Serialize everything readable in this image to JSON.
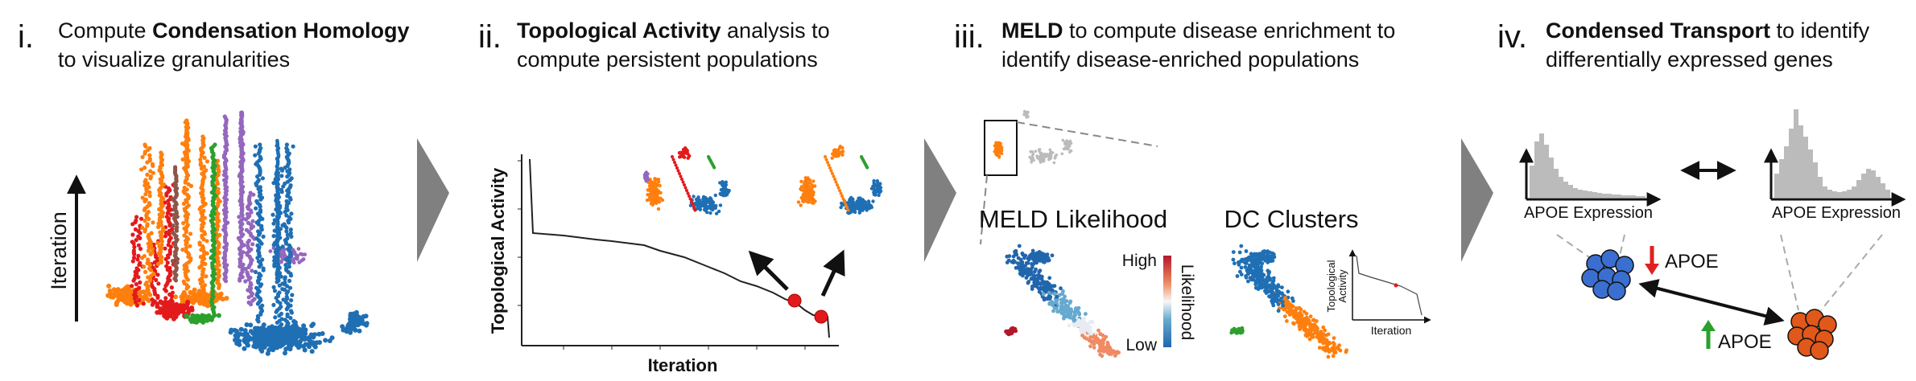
{
  "panels": [
    {
      "numeral": "i.",
      "line1_bold": "Condensation Homology",
      "line1_pre": "Compute ",
      "line1_post": "",
      "line2": "to visualize granularities",
      "axis_label": "Iteration"
    },
    {
      "numeral": "ii.",
      "line1_bold": "Topological Activity",
      "line1_pre": "",
      "line1_post": " analysis to",
      "line2": "compute persistent populations",
      "xlabel": "Iteration",
      "ylabel": "Topological Activity"
    },
    {
      "numeral": "iii.",
      "line1_bold": "MELD",
      "line1_pre": "",
      "line1_post": " to compute disease enrichment to",
      "line2": "identify disease-enriched populations",
      "meld_title": "MELD Likelihood",
      "dc_title": "DC Clusters",
      "colorbar_high": "High",
      "colorbar_low": "Low",
      "colorbar_label": "Likelihood",
      "inset_ylabel_1": "Topological",
      "inset_ylabel_2": "Activity",
      "inset_xlabel": "Iteration"
    },
    {
      "numeral": "iv.",
      "line1_bold": "Condensed Transport",
      "line1_pre": "",
      "line1_post": " to identify",
      "line2": "differentially expressed genes",
      "hist_left_label": "APOE Expression",
      "hist_right_label": "APOE Expression",
      "down_gene": "APOE",
      "up_gene": "APOE"
    }
  ],
  "colors": {
    "red": "#e31a1c",
    "orange": "#ff7f0e",
    "green": "#2ca02c",
    "purple": "#9467bd",
    "blue": "#1f6fb4",
    "brown": "#8c564b",
    "gray": "#bbbbbb",
    "arrow_gray": "#808080",
    "cell_blue": "#3a6fcf",
    "cell_orange": "#e0581a",
    "up_arrow": "#2aa02a",
    "down_arrow": "#e02020"
  },
  "icons": [
    "chevron-right-icon",
    "double-arrow-icon",
    "up-arrow-icon",
    "down-arrow-icon"
  ]
}
